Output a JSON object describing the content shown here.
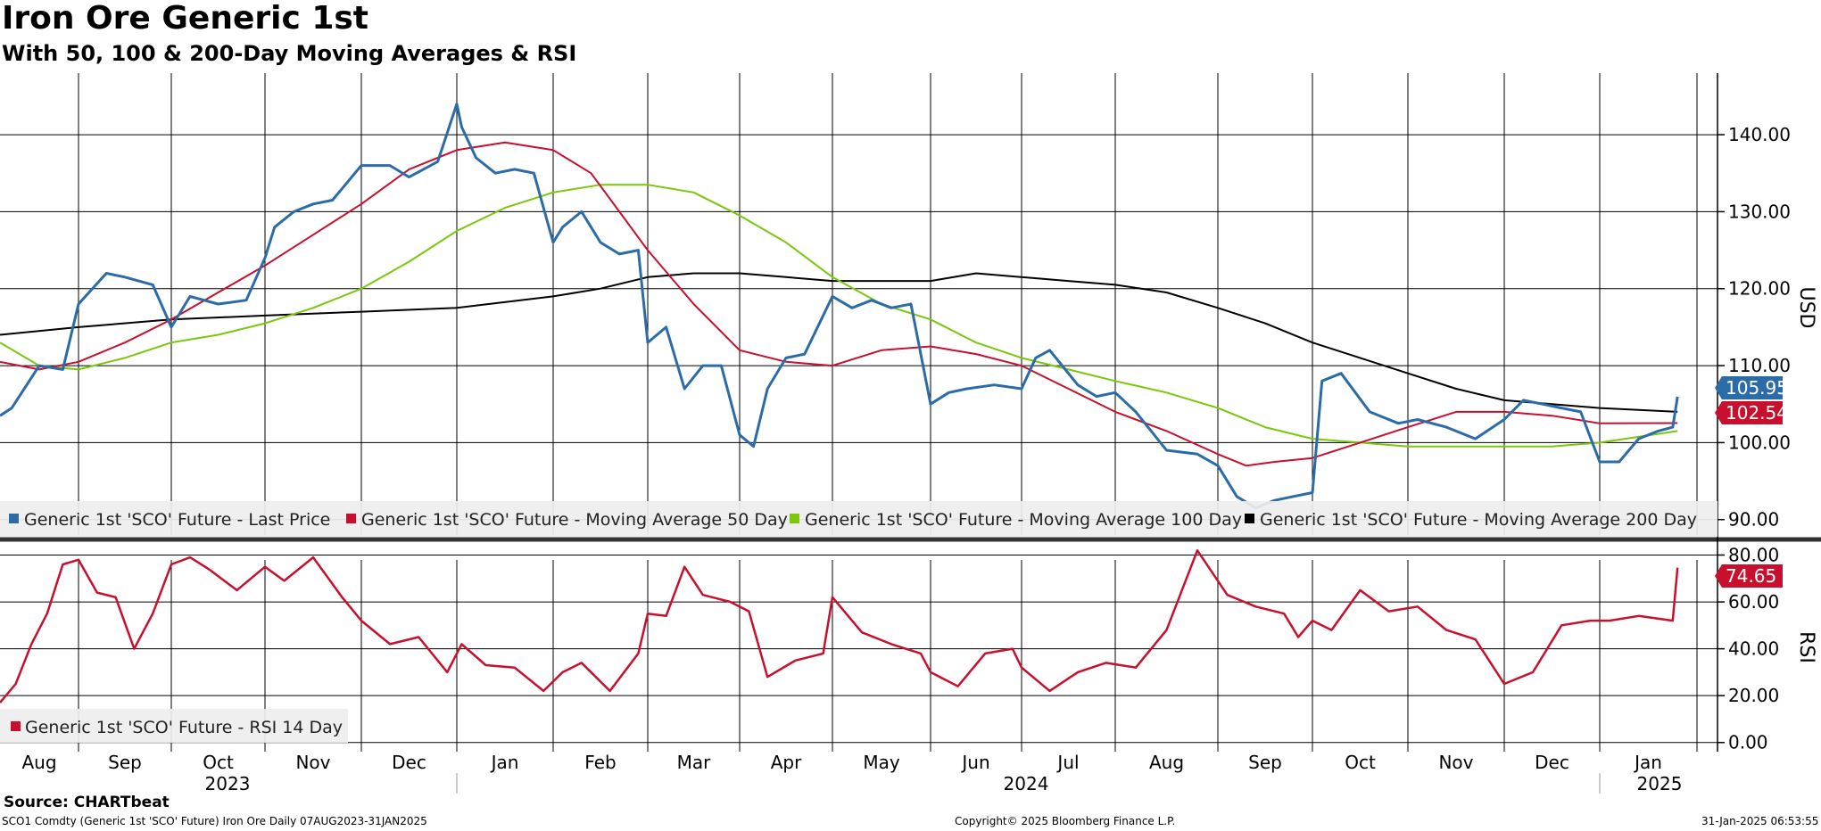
{
  "title": "Iron Ore Generic 1st",
  "subtitle": "With 50, 100 & 200-Day Moving Averages & RSI",
  "source": "Source: CHARTbeat",
  "footer": {
    "left": "SCO1 Comdty (Generic 1st 'SCO' Future) Iron Ore  Daily 07AUG2023-31JAN2025",
    "center": "Copyright© 2025 Bloomberg Finance L.P.",
    "right": "31-Jan-2025 06:53:55"
  },
  "colors": {
    "last_price": "#2b6ca8",
    "ma50": "#c8102e",
    "ma100": "#7ac70c",
    "ma200": "#000000",
    "rsi": "#c8102e"
  },
  "chart_data": [
    {
      "type": "line",
      "title": "Iron Ore Generic 1st",
      "ylabel": "USD",
      "ylim": [
        88,
        148
      ],
      "yticks": [
        "90.00",
        "100.00",
        "110.00",
        "120.00",
        "130.00",
        "140.00"
      ],
      "x_month_labels": [
        "Aug",
        "Sep",
        "Oct",
        "Nov",
        "Dec",
        "Jan",
        "Feb",
        "Mar",
        "Apr",
        "May",
        "Jun",
        "Jul",
        "Aug",
        "Sep",
        "Oct",
        "Nov",
        "Dec",
        "Jan"
      ],
      "x_year_labels": [
        "2023",
        "2024",
        "2025"
      ],
      "legend": [
        "Generic 1st 'SCO' Future - Last Price",
        "Generic 1st 'SCO' Future - Moving Average 50 Day",
        "Generic 1st 'SCO' Future - Moving Average 100 Day",
        "Generic 1st 'SCO' Future - Moving Average 200 Day"
      ],
      "last_values": {
        "last_price": "105.95",
        "ma50": "102.54"
      },
      "series": [
        {
          "name": "Generic 1st 'SCO' Future - Last Price",
          "x": [
            0,
            0.15,
            0.5,
            0.8,
            1,
            1.3,
            1.5,
            1.8,
            2,
            2.2,
            2.5,
            2.8,
            3,
            3.1,
            3.3,
            3.5,
            3.7,
            4,
            4.3,
            4.5,
            4.8,
            5,
            5.05,
            5.2,
            5.4,
            5.6,
            5.8,
            6,
            6.1,
            6.3,
            6.5,
            6.7,
            6.9,
            7,
            7.2,
            7.4,
            7.6,
            7.8,
            8,
            8.15,
            8.3,
            8.5,
            8.7,
            9,
            9.2,
            9.4,
            9.6,
            9.8,
            10,
            10.2,
            10.4,
            10.7,
            11,
            11.15,
            11.3,
            11.6,
            11.8,
            12,
            12.2,
            12.5,
            12.8,
            13,
            13.2,
            13.4,
            13.6,
            13.8,
            14,
            14.1,
            14.3,
            14.6,
            14.9,
            15.1,
            15.4,
            15.7,
            16,
            16.2,
            16.4,
            16.6,
            16.8,
            17,
            17.2,
            17.4,
            17.6,
            17.75,
            17.8
          ],
          "y": [
            103.5,
            104.5,
            110,
            109.5,
            118,
            122,
            121.5,
            120.5,
            115,
            119,
            118,
            118.5,
            124,
            128,
            130,
            131,
            131.5,
            136,
            136,
            134.5,
            136.5,
            144,
            141,
            137,
            135,
            135.5,
            135,
            126,
            128,
            130,
            126,
            124.5,
            125,
            113,
            115,
            107,
            110,
            110,
            101,
            99.5,
            107,
            111,
            111.5,
            119,
            117.5,
            118.5,
            117.5,
            118,
            105,
            106.5,
            107,
            107.5,
            107,
            111,
            112,
            107.5,
            106,
            106.5,
            104,
            99,
            98.5,
            97,
            93,
            91.5,
            92.5,
            93,
            93.5,
            108,
            109,
            104,
            102.5,
            103,
            102,
            100.5,
            103,
            105.5,
            105,
            104.5,
            104,
            97.5,
            97.5,
            100.5,
            101.5,
            102,
            105.95
          ]
        },
        {
          "name": "Generic 1st 'SCO' Future - Moving Average 50 Day",
          "x": [
            0,
            0.5,
            1,
            1.5,
            2,
            2.5,
            3,
            3.5,
            4,
            4.5,
            5,
            5.5,
            6,
            6.4,
            6.7,
            7,
            7.5,
            8,
            8.5,
            9,
            9.5,
            10,
            10.5,
            11,
            11.5,
            12,
            12.5,
            13,
            13.3,
            13.6,
            14,
            14.5,
            15,
            15.5,
            16,
            16.5,
            17,
            17.8
          ],
          "y": [
            110.5,
            109.5,
            110.5,
            113,
            116,
            119.5,
            123,
            127,
            131,
            135.5,
            138,
            139,
            138,
            135,
            130,
            125,
            118,
            112,
            110.5,
            110,
            112,
            112.5,
            111.5,
            110,
            107,
            104,
            101.5,
            98.5,
            97,
            97.5,
            98,
            100,
            102,
            104,
            104,
            103.5,
            102.5,
            102.54
          ]
        },
        {
          "name": "Generic 1st 'SCO' Future - Moving Average 100 Day",
          "x": [
            0,
            0.5,
            1,
            1.5,
            2,
            2.5,
            3,
            3.5,
            4,
            4.5,
            5,
            5.5,
            6,
            6.5,
            7,
            7.5,
            8,
            8.5,
            9,
            9.5,
            10,
            10.5,
            11,
            11.5,
            12,
            12.5,
            13,
            13.5,
            14,
            14.5,
            15,
            15.5,
            16,
            16.5,
            17,
            17.8
          ],
          "y": [
            113,
            110,
            109.5,
            111,
            113,
            114,
            115.5,
            117.5,
            120,
            123.5,
            127.5,
            130.5,
            132.5,
            133.5,
            133.5,
            132.5,
            129.5,
            126,
            121.5,
            118,
            116,
            113,
            111,
            109.5,
            108,
            106.5,
            104.5,
            102,
            100.5,
            100,
            99.5,
            99.5,
            99.5,
            99.5,
            100,
            101.5
          ]
        },
        {
          "name": "Generic 1st 'SCO' Future - Moving Average 200 Day",
          "x": [
            0,
            1,
            2,
            3,
            4,
            5,
            6,
            6.5,
            7,
            7.5,
            8,
            8.5,
            9,
            9.5,
            10,
            10.5,
            11,
            11.5,
            12,
            12.5,
            13,
            13.5,
            14,
            14.5,
            15,
            15.5,
            16,
            16.5,
            17,
            17.8
          ],
          "y": [
            114,
            115,
            116,
            116.5,
            117,
            117.5,
            119,
            120,
            121.5,
            122,
            122,
            121.5,
            121,
            121,
            121,
            122,
            121.5,
            121,
            120.5,
            119.5,
            117.5,
            115.5,
            113,
            111,
            109,
            107,
            105.5,
            105,
            104.5,
            104
          ]
        }
      ]
    },
    {
      "type": "line",
      "title": "RSI",
      "ylabel": "RSI",
      "ylim": [
        -2,
        84
      ],
      "yticks": [
        "0.00",
        "20.00",
        "40.00",
        "60.00",
        "80.00"
      ],
      "legend": [
        "Generic 1st 'SCO' Future - RSI 14 Day"
      ],
      "last_value": "74.65",
      "series": [
        {
          "name": "Generic 1st 'SCO' Future - RSI 14 Day",
          "x": [
            0,
            0.2,
            0.4,
            0.6,
            0.8,
            1,
            1.2,
            1.4,
            1.6,
            1.8,
            2,
            2.2,
            2.4,
            2.7,
            3,
            3.2,
            3.5,
            3.8,
            4,
            4.3,
            4.6,
            4.9,
            5.05,
            5.3,
            5.6,
            5.9,
            6.1,
            6.3,
            6.6,
            6.9,
            7,
            7.2,
            7.4,
            7.6,
            7.9,
            8.1,
            8.3,
            8.6,
            8.9,
            9,
            9.3,
            9.6,
            9.9,
            10,
            10.3,
            10.6,
            10.9,
            11,
            11.3,
            11.6,
            11.9,
            12.2,
            12.5,
            12.8,
            13.1,
            13.4,
            13.7,
            13.85,
            14.0,
            14.2,
            14.5,
            14.8,
            15.1,
            15.4,
            15.7,
            16,
            16.3,
            16.6,
            16.9,
            17.1,
            17.4,
            17.75,
            17.8
          ],
          "y": [
            17,
            25,
            42,
            55,
            76,
            78,
            64,
            62,
            40,
            55,
            76,
            79,
            74,
            65,
            75,
            69,
            79,
            62,
            52,
            42,
            45,
            30,
            42,
            33,
            32,
            22,
            30,
            34,
            22,
            38,
            55,
            54,
            75,
            63,
            60,
            56,
            28,
            35,
            38,
            62,
            47,
            42,
            38,
            30,
            24,
            38,
            40,
            32,
            22,
            30,
            34,
            32,
            48,
            82,
            63,
            58,
            55,
            45,
            52,
            48,
            65,
            56,
            58,
            48,
            44,
            25,
            30,
            50,
            52,
            52,
            54,
            52,
            74.65
          ]
        }
      ]
    }
  ]
}
